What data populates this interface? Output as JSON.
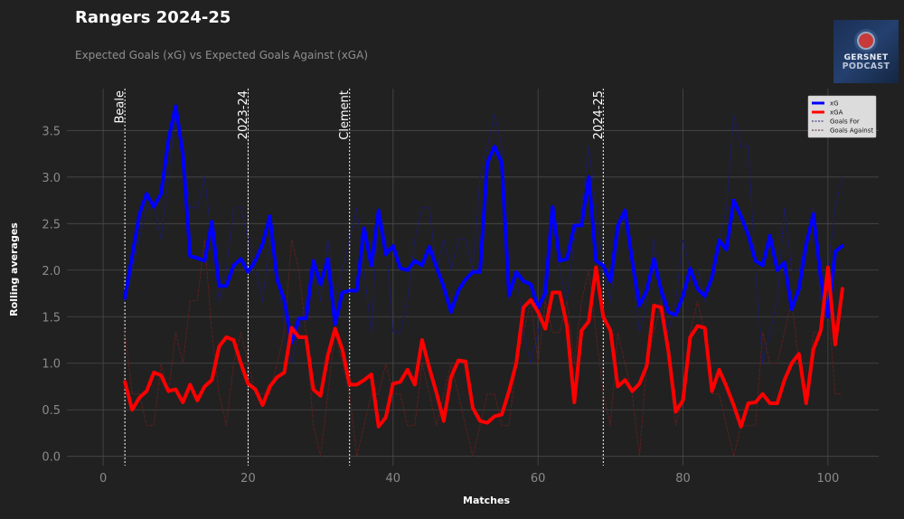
{
  "chart_data": {
    "type": "line",
    "title": "Rangers 2024-25",
    "subtitle": "Expected Goals (xG) vs Expected Goals Against (xGA)",
    "xlabel": "Matches",
    "ylabel": "Rolling averages",
    "xlim": [
      -5,
      107
    ],
    "ylim": [
      -0.1,
      3.95
    ],
    "x_ticks": [
      0,
      20,
      40,
      60,
      80,
      100
    ],
    "y_ticks": [
      0.0,
      0.5,
      1.0,
      1.5,
      2.0,
      2.5,
      3.0,
      3.5
    ],
    "grid": true,
    "legend_position": "top-right",
    "annotations": [
      {
        "x": 3,
        "label": "Beale"
      },
      {
        "x": 20,
        "label": "2023-24"
      },
      {
        "x": 34,
        "label": "Clement"
      },
      {
        "x": 69,
        "label": "2024-25"
      }
    ],
    "series": [
      {
        "name": "xG",
        "color": "#0000ff",
        "style": "solid-thick",
        "x_start": 3,
        "values": [
          1.7,
          2.15,
          2.6,
          2.82,
          2.68,
          2.82,
          3.4,
          3.76,
          3.25,
          2.15,
          2.13,
          2.1,
          2.52,
          1.83,
          1.83,
          2.05,
          2.12,
          1.98,
          2.1,
          2.28,
          2.58,
          1.9,
          1.68,
          1.22,
          1.48,
          1.48,
          2.1,
          1.85,
          2.12,
          1.42,
          1.76,
          1.78,
          1.78,
          2.45,
          2.05,
          2.64,
          2.17,
          2.26,
          2.02,
          2.0,
          2.1,
          2.05,
          2.25,
          2.03,
          1.82,
          1.55,
          1.78,
          1.9,
          1.98,
          1.98,
          3.15,
          3.33,
          3.15,
          1.73,
          1.98,
          1.88,
          1.85,
          1.6,
          1.75,
          2.68,
          2.1,
          2.12,
          2.48,
          2.48,
          3.0,
          2.1,
          2.05,
          1.88,
          2.48,
          2.64,
          2.1,
          1.62,
          1.78,
          2.12,
          1.78,
          1.55,
          1.52,
          1.72,
          2.02,
          1.8,
          1.72,
          1.92,
          2.32,
          2.22,
          2.75,
          2.58,
          2.38,
          2.1,
          2.05,
          2.37,
          2.0,
          2.08,
          1.58,
          1.8,
          2.28,
          2.6,
          1.92,
          1.5,
          2.2,
          2.26
        ]
      },
      {
        "name": "xGA",
        "color": "#ff0000",
        "style": "solid-thick",
        "x_start": 3,
        "values": [
          0.8,
          0.5,
          0.63,
          0.7,
          0.9,
          0.87,
          0.7,
          0.72,
          0.58,
          0.77,
          0.6,
          0.75,
          0.82,
          1.18,
          1.28,
          1.25,
          1.0,
          0.78,
          0.72,
          0.55,
          0.75,
          0.85,
          0.9,
          1.38,
          1.28,
          1.28,
          0.72,
          0.65,
          1.08,
          1.37,
          1.15,
          0.77,
          0.77,
          0.82,
          0.88,
          0.32,
          0.42,
          0.78,
          0.8,
          0.93,
          0.77,
          1.25,
          0.95,
          0.68,
          0.38,
          0.85,
          1.03,
          1.02,
          0.52,
          0.38,
          0.36,
          0.43,
          0.45,
          0.7,
          1.0,
          1.6,
          1.68,
          1.55,
          1.37,
          1.76,
          1.76,
          1.4,
          0.58,
          1.35,
          1.45,
          2.03,
          1.5,
          1.35,
          0.75,
          0.82,
          0.7,
          0.78,
          0.97,
          1.62,
          1.6,
          1.12,
          0.48,
          0.6,
          1.28,
          1.4,
          1.38,
          0.7,
          0.93,
          0.75,
          0.55,
          0.32,
          0.57,
          0.58,
          0.67,
          0.57,
          0.57,
          0.82,
          1.0,
          1.1,
          0.57,
          1.15,
          1.35,
          2.03,
          1.2,
          1.8
        ]
      },
      {
        "name": "Goals For",
        "color": "#1a1a7a",
        "style": "dashed-thin",
        "x_start": 3,
        "values": [
          1.67,
          2.0,
          2.33,
          2.67,
          2.67,
          2.33,
          3.0,
          3.67,
          3.33,
          2.67,
          2.67,
          3.0,
          2.33,
          1.67,
          2.0,
          2.67,
          2.67,
          2.33,
          2.0,
          1.67,
          2.33,
          2.0,
          1.33,
          1.0,
          1.33,
          1.67,
          2.0,
          1.67,
          2.33,
          1.67,
          2.0,
          2.33,
          2.67,
          2.0,
          1.33,
          2.67,
          2.33,
          1.33,
          1.33,
          1.67,
          2.33,
          2.67,
          2.67,
          2.0,
          2.33,
          2.0,
          2.33,
          2.33,
          2.0,
          3.0,
          3.33,
          3.67,
          3.33,
          1.67,
          2.0,
          1.33,
          1.0,
          1.33,
          2.0,
          2.67,
          2.0,
          1.67,
          2.33,
          2.67,
          3.33,
          2.67,
          2.0,
          1.67,
          2.33,
          2.67,
          2.0,
          1.33,
          1.67,
          2.33,
          1.67,
          1.33,
          1.67,
          2.33,
          2.0,
          2.0,
          1.67,
          2.0,
          2.33,
          2.67,
          3.67,
          3.33,
          3.33,
          2.0,
          1.0,
          1.33,
          1.67,
          2.67,
          2.0,
          2.0,
          2.33,
          2.67,
          1.67,
          2.0,
          2.67,
          3.0
        ]
      },
      {
        "name": "Goals Against",
        "color": "#5a1f1f",
        "style": "dashed-thin",
        "x_start": 3,
        "values": [
          1.33,
          0.67,
          0.67,
          0.33,
          0.33,
          1.0,
          0.67,
          1.33,
          1.0,
          1.67,
          1.67,
          2.33,
          1.33,
          0.67,
          0.33,
          1.0,
          1.33,
          1.0,
          0.67,
          0.67,
          0.67,
          1.0,
          1.33,
          2.33,
          2.0,
          1.33,
          0.33,
          0.0,
          0.67,
          1.33,
          1.0,
          0.67,
          0.0,
          0.33,
          0.67,
          0.67,
          1.0,
          0.67,
          0.67,
          0.33,
          0.33,
          1.0,
          0.67,
          0.33,
          0.67,
          1.0,
          0.67,
          0.33,
          0.0,
          0.33,
          0.67,
          0.67,
          0.33,
          0.33,
          1.0,
          1.33,
          1.67,
          1.0,
          1.67,
          1.33,
          1.33,
          1.67,
          1.0,
          1.67,
          2.0,
          1.33,
          0.67,
          0.33,
          1.33,
          1.0,
          0.67,
          0.0,
          1.0,
          1.33,
          1.67,
          1.0,
          0.33,
          0.67,
          1.33,
          1.67,
          1.33,
          0.67,
          0.67,
          0.33,
          0.0,
          0.33,
          0.33,
          0.33,
          1.33,
          1.0,
          1.0,
          1.33,
          1.67,
          1.0,
          0.67,
          1.33,
          1.33,
          1.67,
          0.67,
          0.67
        ]
      }
    ]
  },
  "logo": {
    "line1": "GERSNET",
    "line2": "PODCAST"
  },
  "colors": {
    "background": "#212121",
    "grid": "#4a4a4a",
    "axis_text": "#8a8a8a",
    "title": "#ffffff",
    "subtitle": "#8f8f8f"
  }
}
